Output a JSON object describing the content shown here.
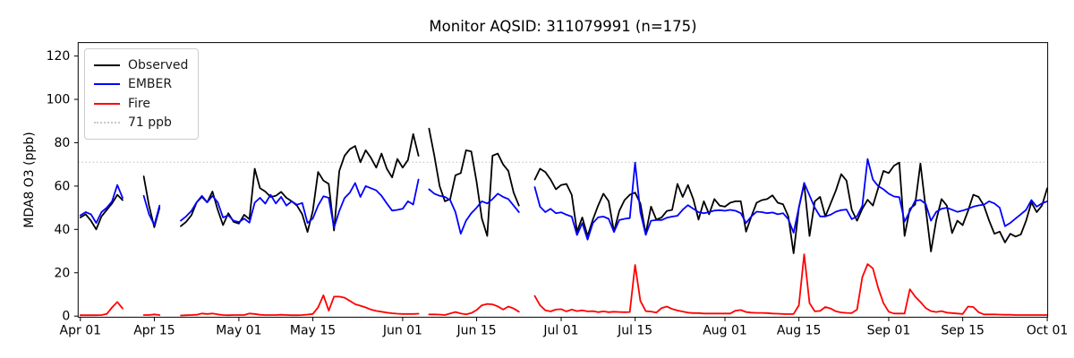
{
  "chart_data": {
    "type": "line",
    "title": "Monitor AQSID: 311079991 (n=175)",
    "monitor_aqsid": "311079991",
    "n_points": 175,
    "xlabel": "",
    "ylabel": "MDA8 O3 (ppb)",
    "ylim": [
      -0.5,
      126.2
    ],
    "grid": false,
    "legend_position": "upper-left",
    "x_unit": "days since Apr 01",
    "yticks": [
      0,
      20,
      40,
      60,
      80,
      100,
      120
    ],
    "xticks": [
      {
        "label": "Apr 01",
        "day": 0
      },
      {
        "label": "Apr 15",
        "day": 14
      },
      {
        "label": "May 01",
        "day": 30
      },
      {
        "label": "May 15",
        "day": 44
      },
      {
        "label": "Jun 01",
        "day": 61
      },
      {
        "label": "Jun 15",
        "day": 75
      },
      {
        "label": "Jul 01",
        "day": 91
      },
      {
        "label": "Jul 15",
        "day": 105
      },
      {
        "label": "Aug 01",
        "day": 122
      },
      {
        "label": "Aug 15",
        "day": 136
      },
      {
        "label": "Sep 01",
        "day": 153
      },
      {
        "label": "Sep 15",
        "day": 167
      },
      {
        "label": "Oct 01",
        "day": 183
      }
    ],
    "threshold": {
      "value": 71,
      "label": "71 ppb",
      "color": "#c8c8c8",
      "style": "dotted"
    },
    "missing_days": [
      "Apr 10",
      "Apr 11",
      "Apr 12",
      "Apr 17",
      "Apr 18",
      "Apr 19",
      "Jun 05",
      "Jun 24",
      "Jun 25"
    ],
    "series": [
      {
        "name": "Observed",
        "color": "#000000",
        "segments": [
          {
            "start_day": 0,
            "values": [
              45.5,
              47,
              44,
              40,
              46,
              49,
              52,
              56,
              53.5
            ]
          },
          {
            "start_day": 12,
            "values": [
              64.5,
              51,
              41,
              50
            ]
          },
          {
            "start_day": 19,
            "values": [
              41.5,
              43.5,
              46.5,
              52.5,
              55,
              52.5,
              57.5,
              49,
              42,
              47.5,
              43.5,
              42.7,
              46.8,
              44.7,
              68,
              59,
              57.5,
              55,
              55.5,
              57.3,
              54.6,
              53,
              51,
              47,
              38.8,
              48.5,
              66.5,
              62.5,
              61,
              39.5,
              67,
              74,
              77,
              78.5,
              71,
              76.5,
              73,
              68.5,
              75,
              68,
              64,
              72.5,
              68.5,
              72,
              84,
              74
            ]
          },
          {
            "start_day": 66,
            "values": [
              86.5,
              74,
              60,
              53,
              54,
              65,
              66,
              76.5,
              76,
              62,
              45,
              37,
              74,
              75,
              70,
              67,
              57,
              51
            ]
          },
          {
            "start_day": 86,
            "values": [
              63,
              68,
              66.5,
              63,
              58.5,
              60.5,
              61,
              56,
              39,
              45.5,
              37,
              44.5,
              51,
              56.5,
              53,
              39,
              48.5,
              53.5,
              56,
              57,
              52,
              38,
              50.5,
              44.5,
              45.5,
              48.5,
              49,
              61,
              55,
              60.5,
              54,
              44.5,
              53,
              47,
              54,
              51,
              50.5,
              52.3,
              53,
              53,
              39,
              46,
              52.3,
              53.5,
              54,
              55.7,
              52.3,
              51.6,
              46,
              29,
              50,
              61,
              37,
              53,
              55,
              46,
              52,
              58,
              65.5,
              62.5,
              49,
              44,
              49.5,
              53.7,
              51,
              59,
              67,
              66,
              69.4,
              70.8,
              37,
              49.5,
              51.5,
              70.4,
              49.8,
              29.8,
              44.3,
              54,
              51,
              38.3,
              44,
              42,
              48.5,
              56,
              55,
              51,
              44,
              38,
              39,
              34,
              38,
              36.7,
              37.7,
              44,
              52.5,
              48,
              51,
              59
            ]
          }
        ]
      },
      {
        "name": "EMBER",
        "color": "#0000ff",
        "segments": [
          {
            "start_day": 0,
            "values": [
              46.5,
              48,
              47,
              43,
              48,
              50,
              53,
              60.5,
              54.5
            ]
          },
          {
            "start_day": 12,
            "values": [
              55.5,
              47,
              42,
              51
            ]
          },
          {
            "start_day": 19,
            "values": [
              44,
              46,
              48.5,
              52.5,
              55.5,
              52.5,
              55.5,
              52.5,
              45.5,
              46.5,
              44,
              43.4,
              45,
              43.1,
              52.3,
              54.6,
              51.9,
              56,
              52,
              55,
              51,
              53,
              51.4,
              52.2,
              43,
              45,
              51,
              55.3,
              54.6,
              40.8,
              48.5,
              54.5,
              57,
              61.4,
              55,
              60,
              59,
              58,
              55.5,
              52,
              48.7,
              49,
              49.5,
              53,
              51.5,
              63
            ]
          },
          {
            "start_day": 66,
            "values": [
              58.5,
              56.5,
              55.5,
              55,
              53.5,
              48,
              38,
              44,
              47.5,
              50,
              53,
              52,
              54,
              56.5,
              55,
              54,
              51,
              48
            ]
          },
          {
            "start_day": 86,
            "values": [
              59.5,
              50.5,
              48,
              49.5,
              47.5,
              47.9,
              46.8,
              45.9,
              37.4,
              42.9,
              35.3,
              42.9,
              45.6,
              45.9,
              44.9,
              38.8,
              44.3,
              44.9,
              45.2,
              70.8,
              48,
              37.5,
              44,
              44.3,
              44.3,
              45.4,
              45.9,
              46.3,
              49.1,
              51.2,
              49.5,
              48,
              47.5,
              48,
              48.7,
              48.9,
              48.6,
              49,
              48.6,
              47.5,
              43,
              46,
              48.2,
              48,
              47.5,
              47.8,
              47,
              47.5,
              44.7,
              38.5,
              50,
              61.5,
              55.7,
              50,
              46,
              46,
              46.8,
              48.2,
              48.9,
              49.2,
              44.7,
              46.1,
              50.9,
              72.5,
              63,
              60,
              58.5,
              56.5,
              55.2,
              54.9,
              43.6,
              48.4,
              53.2,
              53.6,
              51.8,
              44,
              48.1,
              49.5,
              50,
              49.1,
              48.1,
              48.7,
              49.5,
              50.5,
              51.1,
              51.4,
              53,
              52,
              50,
              41.5,
              43,
              45,
              47,
              49,
              53.5,
              50.5,
              52,
              53
            ]
          }
        ]
      },
      {
        "name": "Fire",
        "color": "#ff0000",
        "segments": [
          {
            "start_day": 0,
            "values": [
              0.4,
              0.4,
              0.4,
              0.4,
              0.5,
              1,
              4,
              6.5,
              3.5
            ]
          },
          {
            "start_day": 12,
            "values": [
              0.5,
              0.5,
              0.8,
              0.5
            ]
          },
          {
            "start_day": 19,
            "values": [
              0.3,
              0.4,
              0.5,
              0.6,
              1.2,
              1,
              1.2,
              0.8,
              0.5,
              0.4,
              0.5,
              0.5,
              0.5,
              1.2,
              1,
              0.6,
              0.5,
              0.5,
              0.5,
              0.6,
              0.5,
              0.4,
              0.4,
              0.5,
              0.7,
              1,
              4,
              9.6,
              2.5,
              9,
              9,
              8.5,
              7,
              5.5,
              4.8,
              4,
              3,
              2.4,
              2,
              1.6,
              1.3,
              1.1,
              1,
              1,
              1,
              1.1
            ]
          },
          {
            "start_day": 66,
            "values": [
              0.8,
              0.8,
              0.7,
              0.5,
              1.2,
              1.9,
              1.2,
              0.8,
              1.4,
              2.8,
              5,
              5.6,
              5.4,
              4.5,
              3,
              4.4,
              3.5,
              2
            ]
          },
          {
            "start_day": 86,
            "values": [
              9.3,
              5,
              2.7,
              2.2,
              3,
              3.2,
              2.2,
              3,
              2.3,
              2.7,
              2.2,
              2.3,
              1.8,
              2.2,
              1.8,
              2,
              1.9,
              1.8,
              1.9,
              23.6,
              7,
              2.3,
              2.1,
              1.6,
              3.7,
              4.4,
              3.3,
              2.6,
              2.1,
              1.6,
              1.4,
              1.4,
              1.2,
              1.2,
              1.2,
              1.2,
              1.2,
              1.2,
              2.5,
              2.8,
              1.9,
              1.6,
              1.5,
              1.5,
              1.4,
              1.2,
              1.1,
              1,
              0.9,
              1,
              5,
              28.5,
              6,
              2.2,
              2.4,
              4.2,
              3.5,
              2.2,
              1.7,
              1.5,
              1.4,
              3,
              18,
              24,
              22,
              13,
              6,
              2,
              1.2,
              1.2,
              1.2,
              12.4,
              9,
              6.5,
              3.7,
              2.3,
              1.9,
              2.3,
              1.6,
              1.4,
              1.2,
              1,
              4.4,
              4.2,
              1.8,
              0.8,
              0.8,
              0.8,
              0.7,
              0.6,
              0.6,
              0.5,
              0.5,
              0.5,
              0.5,
              0.5,
              0.5,
              0.5
            ]
          }
        ]
      }
    ]
  }
}
